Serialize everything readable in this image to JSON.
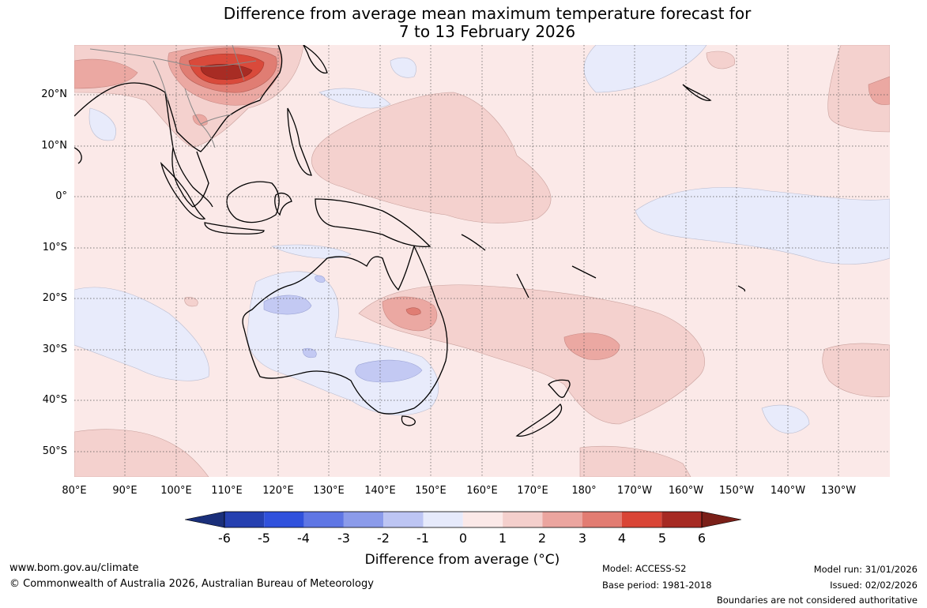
{
  "title": {
    "line1": "Difference from average mean maximum temperature forecast for",
    "line2": "7 to 13 February 2026"
  },
  "latitude_labels": [
    "20°N",
    "10°N",
    "0°",
    "10°S",
    "20°S",
    "30°S",
    "40°S",
    "50°S"
  ],
  "longitude_labels": [
    "80°E",
    "90°E",
    "100°E",
    "110°E",
    "120°E",
    "130°E",
    "140°E",
    "150°E",
    "160°E",
    "170°E",
    "180°",
    "170°W",
    "160°W",
    "150°W",
    "140°W",
    "130°W"
  ],
  "colorbar": {
    "ticks": [
      "-6",
      "-5",
      "-4",
      "-3",
      "-2",
      "-1",
      "0",
      "1",
      "2",
      "3",
      "4",
      "5",
      "6"
    ],
    "colors": [
      "#1a2f7a",
      "#2540b0",
      "#3051dc",
      "#5f76e4",
      "#8b9bea",
      "#bdc5f3",
      "#e6eafb",
      "#fbe9e8",
      "#f4cfcc",
      "#eba59f",
      "#e27c72",
      "#d94536",
      "#a62a23",
      "#7a1f18"
    ],
    "title": "Difference from average (°C)"
  },
  "footer": {
    "website": "www.bom.gov.au/climate",
    "copyright": "© Commonwealth of Australia 2026, Australian Bureau of Meteorology",
    "model": "Model: ACCESS-S2",
    "base_period": "Base period: 1981-2018",
    "model_run": "Model run: 31/01/2026",
    "issued": "Issued: 02/02/2026",
    "disclaimer": "Boundaries are not considered authoritative"
  }
}
